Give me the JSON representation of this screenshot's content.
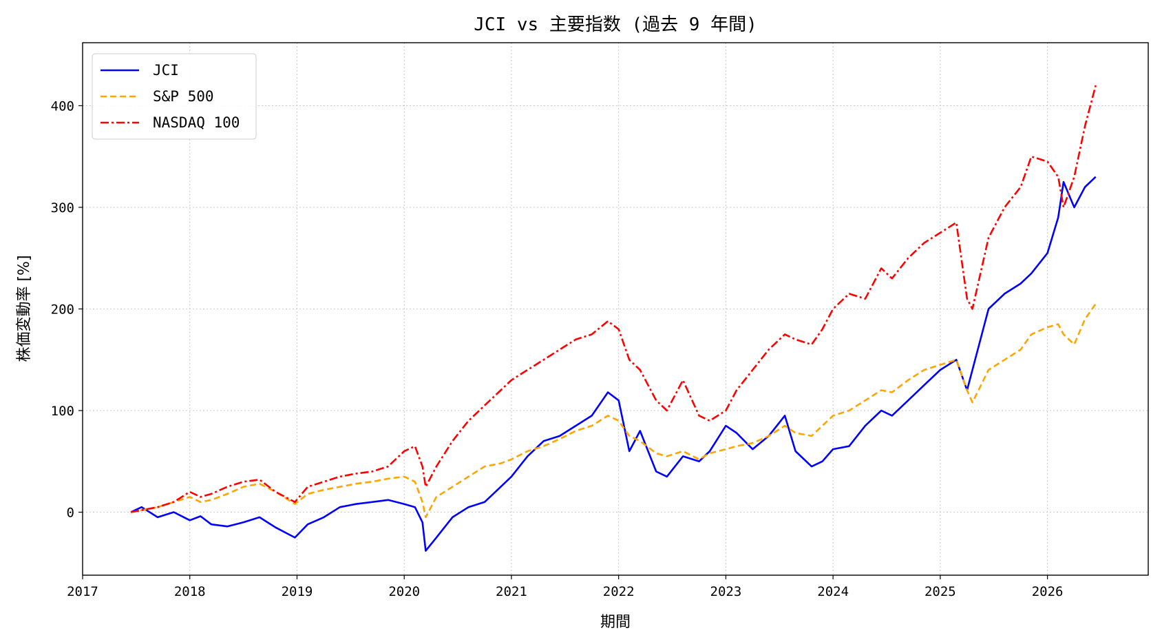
{
  "chart_data": {
    "type": "line",
    "title": "JCI vs 主要指数 (過去 9 年間)",
    "xlabel": "期間",
    "ylabel": "株価変動率 [%]",
    "xlim": [
      2017.0,
      2026.94
    ],
    "ylim": [
      -62,
      462
    ],
    "x_ticks": [
      "2017",
      "2018",
      "2019",
      "2020",
      "2021",
      "2022",
      "2023",
      "2024",
      "2025",
      "2026"
    ],
    "y_ticks": [
      0,
      100,
      200,
      300,
      400
    ],
    "grid": true,
    "legend_position": "top-left",
    "x": [
      2017.45,
      2017.55,
      2017.7,
      2017.85,
      2018.0,
      2018.1,
      2018.2,
      2018.35,
      2018.5,
      2018.65,
      2018.8,
      2018.98,
      2019.1,
      2019.25,
      2019.4,
      2019.55,
      2019.7,
      2019.85,
      2020.0,
      2020.1,
      2020.17,
      2020.2,
      2020.3,
      2020.45,
      2020.6,
      2020.75,
      2020.9,
      2021.0,
      2021.15,
      2021.3,
      2021.45,
      2021.6,
      2021.75,
      2021.9,
      2022.0,
      2022.1,
      2022.2,
      2022.35,
      2022.45,
      2022.6,
      2022.75,
      2022.85,
      2023.0,
      2023.1,
      2023.25,
      2023.4,
      2023.55,
      2023.65,
      2023.8,
      2023.9,
      2024.0,
      2024.15,
      2024.3,
      2024.45,
      2024.55,
      2024.7,
      2024.85,
      2025.0,
      2025.15,
      2025.25,
      2025.3,
      2025.45,
      2025.6,
      2025.75,
      2025.85,
      2026.0,
      2026.1,
      2026.15,
      2026.25,
      2026.35,
      2026.45
    ],
    "series": [
      {
        "name": "JCI",
        "color": "#0000ff",
        "dash": "solid",
        "values": [
          0,
          5,
          -5,
          0,
          -8,
          -4,
          -12,
          -14,
          -10,
          -5,
          -15,
          -25,
          -12,
          -5,
          5,
          8,
          10,
          12,
          8,
          5,
          -10,
          -38,
          -25,
          -5,
          5,
          10,
          25,
          35,
          55,
          70,
          75,
          85,
          95,
          118,
          110,
          60,
          80,
          40,
          35,
          55,
          50,
          60,
          85,
          78,
          62,
          75,
          95,
          60,
          45,
          50,
          62,
          65,
          85,
          100,
          95,
          110,
          125,
          140,
          150,
          120,
          140,
          200,
          215,
          225,
          235,
          255,
          290,
          325,
          300,
          320,
          330
        ]
      },
      {
        "name": "S&P 500",
        "color": "#ffa500",
        "dash": "dashed",
        "values": [
          0,
          2,
          5,
          10,
          15,
          10,
          12,
          18,
          25,
          28,
          20,
          8,
          18,
          22,
          25,
          28,
          30,
          33,
          35,
          30,
          10,
          -5,
          15,
          25,
          35,
          45,
          48,
          52,
          60,
          65,
          72,
          80,
          85,
          95,
          90,
          75,
          70,
          58,
          55,
          60,
          52,
          58,
          62,
          65,
          68,
          75,
          85,
          78,
          75,
          85,
          95,
          100,
          110,
          120,
          118,
          130,
          140,
          145,
          150,
          120,
          108,
          140,
          150,
          160,
          175,
          182,
          185,
          175,
          165,
          190,
          205
        ]
      },
      {
        "name": "NASDAQ 100",
        "color": "#ff0000",
        "dash": "dashdot",
        "values": [
          0,
          2,
          5,
          10,
          20,
          15,
          18,
          25,
          30,
          32,
          20,
          10,
          25,
          30,
          35,
          38,
          40,
          45,
          60,
          65,
          45,
          25,
          45,
          70,
          90,
          105,
          120,
          130,
          140,
          150,
          160,
          170,
          175,
          188,
          180,
          150,
          140,
          110,
          100,
          130,
          95,
          90,
          100,
          120,
          140,
          160,
          175,
          170,
          165,
          180,
          200,
          215,
          210,
          240,
          230,
          250,
          265,
          275,
          285,
          210,
          200,
          270,
          300,
          320,
          350,
          345,
          330,
          300,
          330,
          380,
          420
        ]
      }
    ]
  }
}
